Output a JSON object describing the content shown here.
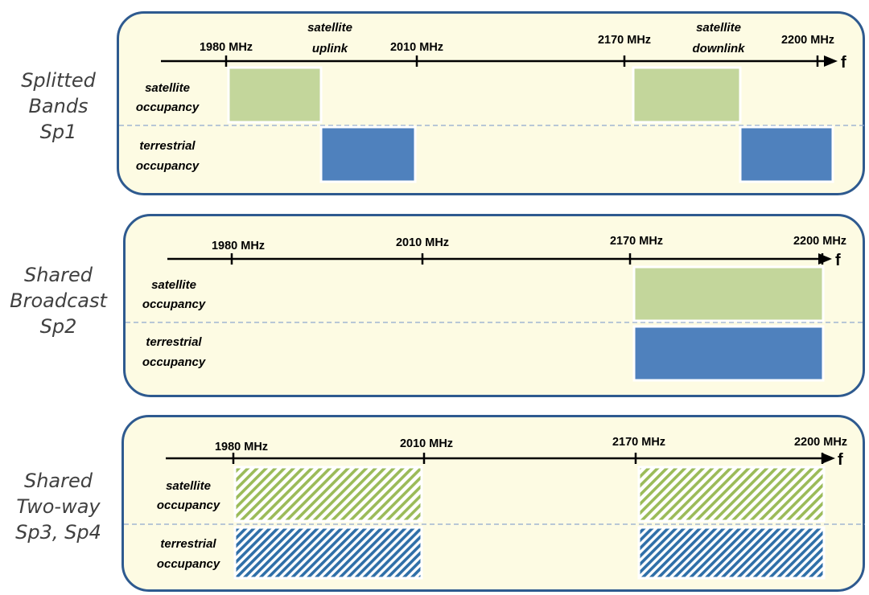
{
  "colors": {
    "satellite": "#c3d69b",
    "terrestrial": "#4f81bd",
    "panel_fill": "#fdfbe3",
    "panel_border": "#2e5a8f"
  },
  "axis_symbol": "f",
  "row_labels": {
    "satellite": [
      "satellite",
      "occupancy"
    ],
    "terrestrial": [
      "terrestrial",
      "occupancy"
    ]
  },
  "schemes": [
    {
      "label_lines": [
        "Splitted",
        "Bands",
        "Sp1"
      ],
      "freq_labels": [
        "1980 MHz",
        "2010 MHz",
        "2170 MHz",
        "2200 MHz"
      ],
      "annotations": [
        {
          "lines": [
            "satellite",
            "uplink"
          ]
        },
        {
          "lines": [
            "satellite",
            "downlink"
          ]
        }
      ],
      "blocks": [
        {
          "row": "satellite",
          "from": 0,
          "to": 1,
          "fill": "solid"
        },
        {
          "row": "terrestrial",
          "from": 1,
          "to": 2,
          "fill": "solid"
        },
        {
          "row": "satellite",
          "from": 4,
          "to": 5,
          "fill": "solid"
        },
        {
          "row": "terrestrial",
          "from": 5,
          "to": 6,
          "fill": "solid"
        }
      ]
    },
    {
      "label_lines": [
        "Shared",
        "Broadcast",
        "Sp2"
      ],
      "freq_labels": [
        "1980 MHz",
        "2010 MHz",
        "2170 MHz",
        "2200 MHz"
      ],
      "annotations": [],
      "blocks": [
        {
          "row": "satellite",
          "from": 4,
          "to": 6,
          "fill": "solid"
        },
        {
          "row": "terrestrial",
          "from": 4,
          "to": 6,
          "fill": "solid"
        }
      ]
    },
    {
      "label_lines": [
        "Shared",
        "Two-way",
        "Sp3, Sp4"
      ],
      "freq_labels": [
        "1980 MHz",
        "2010 MHz",
        "2170 MHz",
        "2200 MHz"
      ],
      "annotations": [],
      "blocks": [
        {
          "row": "satellite",
          "from": 0,
          "to": 2,
          "fill": "hatched"
        },
        {
          "row": "terrestrial",
          "from": 0,
          "to": 2,
          "fill": "hatched"
        },
        {
          "row": "satellite",
          "from": 4,
          "to": 6,
          "fill": "hatched"
        },
        {
          "row": "terrestrial",
          "from": 4,
          "to": 6,
          "fill": "hatched"
        }
      ]
    }
  ]
}
